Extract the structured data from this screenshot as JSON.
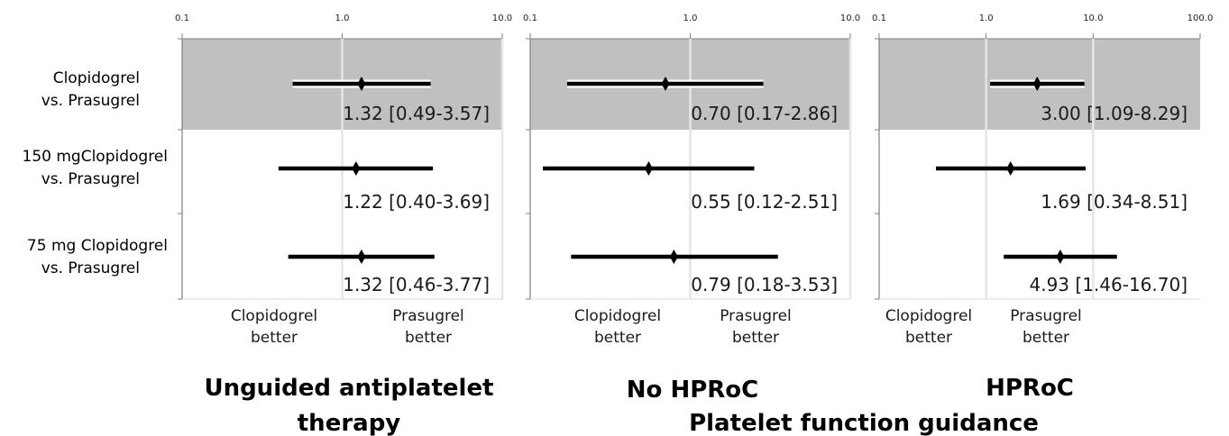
{
  "row_labels": [
    [
      "Clopidogrel",
      "vs. Prasugrel"
    ],
    [
      "150 mgClopidogrel",
      "vs. Prasugrel"
    ],
    [
      "75 mg Clopidogrel",
      "vs. Prasugrel"
    ]
  ],
  "colors": {
    "shade": "#c0c0c0",
    "axis": "#808080",
    "mark": "#000000",
    "text": "#1a1a1a"
  },
  "section_titles": {
    "unguided_line1": "Unguided antiplatelet",
    "unguided_line2": "therapy",
    "no_hproc": "No HPRoC",
    "hproc": "HPRoC",
    "pft": "Platelet function guidance"
  },
  "chart_data": [
    {
      "type": "forest",
      "x_scale": "log",
      "xlim": [
        0.1,
        10.0
      ],
      "ticks": [
        0.1,
        1.0,
        10.0
      ],
      "tick_labels": [
        "0.1",
        "1.0",
        "10.0"
      ],
      "reference_lines": [
        1.0,
        10.0
      ],
      "shaded_row": 0,
      "better_labels": {
        "left": [
          "Clopidogrel",
          "better"
        ],
        "right": [
          "Prasugrel",
          "better"
        ]
      },
      "rows": [
        {
          "estimate": 1.32,
          "lower": 0.49,
          "upper": 3.57,
          "label": "1.32 [0.49-3.57]"
        },
        {
          "estimate": 1.22,
          "lower": 0.4,
          "upper": 3.69,
          "label": "1.22 [0.40-3.69]"
        },
        {
          "estimate": 1.32,
          "lower": 0.46,
          "upper": 3.77,
          "label": "1.32 [0.46-3.77]"
        }
      ]
    },
    {
      "type": "forest",
      "x_scale": "log",
      "xlim": [
        0.1,
        10.0
      ],
      "ticks": [
        0.1,
        1.0,
        10.0
      ],
      "tick_labels": [
        "0.1",
        "1.0",
        "10.0"
      ],
      "reference_lines": [
        1.0,
        10.0
      ],
      "shaded_row": 0,
      "better_labels": {
        "left": [
          "Clopidogrel",
          "better"
        ],
        "right": [
          "Prasugrel",
          "better"
        ]
      },
      "rows": [
        {
          "estimate": 0.7,
          "lower": 0.17,
          "upper": 2.86,
          "label": "0.70 [0.17-2.86]"
        },
        {
          "estimate": 0.55,
          "lower": 0.12,
          "upper": 2.51,
          "label": "0.55 [0.12-2.51]"
        },
        {
          "estimate": 0.79,
          "lower": 0.18,
          "upper": 3.53,
          "label": "0.79 [0.18-3.53]"
        }
      ]
    },
    {
      "type": "forest",
      "x_scale": "log",
      "xlim": [
        0.1,
        100.0
      ],
      "ticks": [
        0.1,
        1.0,
        10.0,
        100.0
      ],
      "tick_labels": [
        "0.1",
        "1.0",
        "10.0",
        "100.0"
      ],
      "reference_lines": [
        1.0,
        10.0
      ],
      "shaded_row": 0,
      "better_labels": {
        "left": [
          "Clopidogrel",
          "better"
        ],
        "right": [
          "Prasugrel",
          "better"
        ]
      },
      "rows": [
        {
          "estimate": 3.0,
          "lower": 1.09,
          "upper": 8.29,
          "label": "3.00 [1.09-8.29]"
        },
        {
          "estimate": 1.69,
          "lower": 0.34,
          "upper": 8.51,
          "label": "1.69 [0.34-8.51]"
        },
        {
          "estimate": 4.93,
          "lower": 1.46,
          "upper": 16.7,
          "label": "4.93 [1.46-16.70]"
        }
      ]
    }
  ]
}
